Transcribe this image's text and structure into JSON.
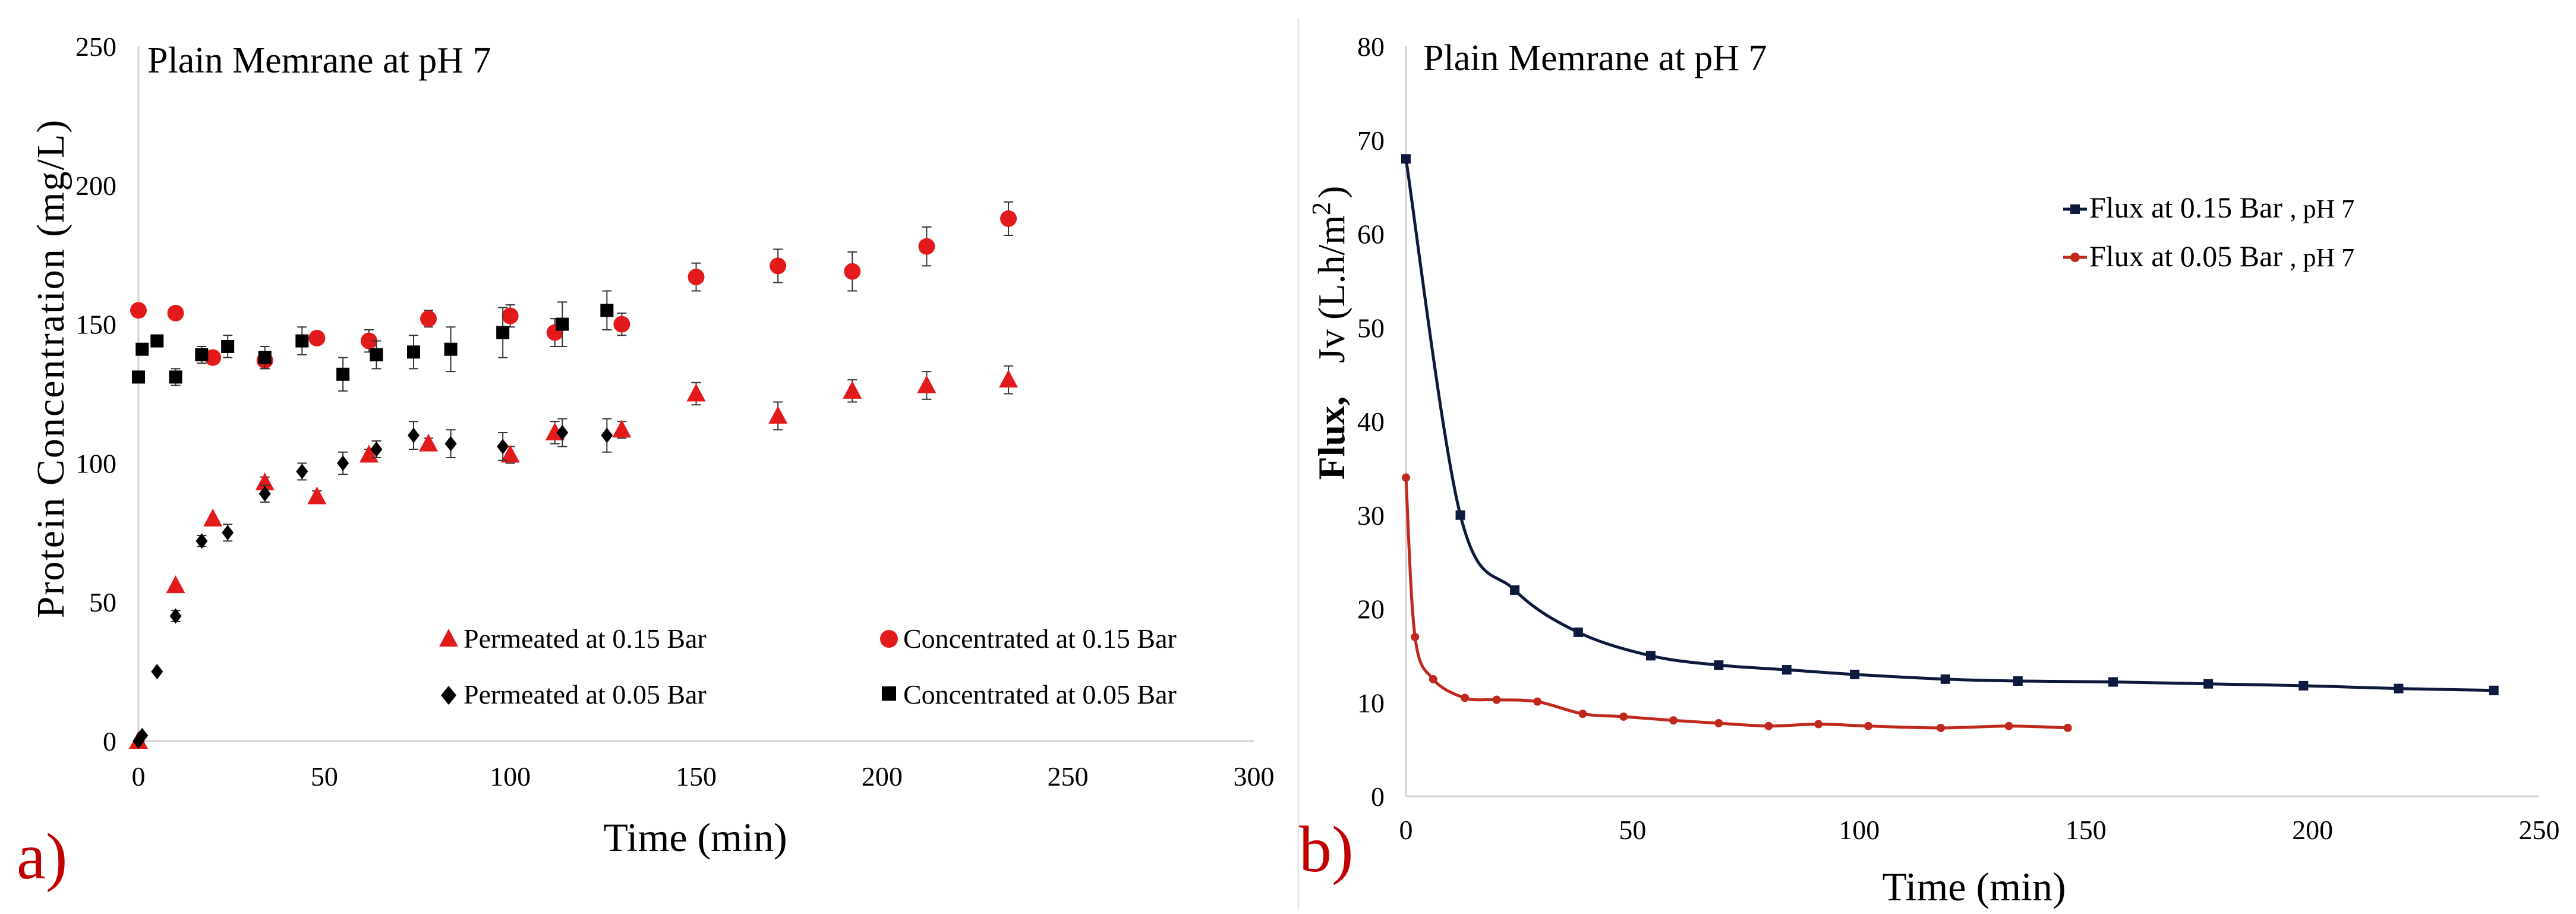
{
  "panels": {
    "left_label": "a)",
    "right_label": "b)",
    "label_color": "#c00000"
  },
  "chart_data": [
    {
      "type": "scatter",
      "title": "Plain Memrane  at pH 7",
      "xlabel": "Time (min)",
      "ylabel": "Protein Concentration  (mg/L)",
      "xlim": [
        0,
        300
      ],
      "ylim": [
        0,
        250
      ],
      "x_ticks": [
        0,
        50,
        100,
        150,
        200,
        250,
        300
      ],
      "y_ticks": [
        0,
        50,
        100,
        150,
        200,
        250
      ],
      "grid": false,
      "legend_position": "bottom",
      "series": [
        {
          "name": "Permeated at 0.15 Bar",
          "marker": "triangle",
          "color": "#e31a1c",
          "x": [
            0,
            10,
            20,
            34,
            48,
            62,
            78,
            100,
            112,
            130,
            150,
            172,
            192,
            212,
            234
          ],
          "y": [
            0,
            56,
            80,
            93,
            88,
            103,
            107,
            103,
            111,
            112,
            125,
            117,
            126,
            128,
            130
          ],
          "err": [
            0,
            0,
            0,
            2,
            2,
            2,
            2,
            3,
            4,
            3,
            4,
            5,
            4,
            5,
            5
          ]
        },
        {
          "name": "Concentrated at 0.15 Bar",
          "marker": "circle",
          "color": "#e31a1c",
          "x": [
            0,
            10,
            20,
            34,
            48,
            62,
            78,
            100,
            112,
            130,
            150,
            172,
            192,
            212,
            234
          ],
          "y": [
            155,
            154,
            138,
            137,
            145,
            144,
            152,
            153,
            147,
            150,
            167,
            171,
            169,
            178,
            188
          ],
          "err": [
            0,
            0,
            2,
            3,
            2,
            4,
            3,
            4,
            5,
            4,
            5,
            6,
            7,
            7,
            6
          ]
        },
        {
          "name": "Permeated at 0.05 Bar",
          "marker": "diamond",
          "color": "#000000",
          "x": [
            0,
            1,
            5,
            10,
            17,
            24,
            34,
            44,
            55,
            64,
            74,
            84,
            98,
            114,
            126
          ],
          "y": [
            0,
            2,
            25,
            45,
            72,
            75,
            89,
            97,
            100,
            105,
            110,
            107,
            106,
            111,
            110
          ],
          "err": [
            0,
            0,
            0,
            2,
            2,
            3,
            3,
            3,
            4,
            3,
            5,
            5,
            5,
            5,
            6
          ]
        },
        {
          "name": "Concentrated at 0.05 Bar",
          "marker": "square",
          "color": "#000000",
          "x": [
            0,
            1,
            5,
            10,
            17,
            24,
            34,
            44,
            55,
            64,
            74,
            84,
            98,
            114,
            126
          ],
          "y": [
            131,
            141,
            144,
            131,
            139,
            142,
            138,
            144,
            132,
            139,
            140,
            141,
            147,
            150,
            155
          ],
          "err": [
            0,
            0,
            0,
            3,
            3,
            4,
            4,
            5,
            6,
            5,
            6,
            8,
            9,
            8,
            7
          ]
        }
      ]
    },
    {
      "type": "line",
      "title": "Plain Memrane  at pH 7",
      "xlabel": "Time (min)",
      "ylabel_bold": "Flux,",
      "ylabel_rest": "Jv (L.h/m",
      "ylabel_sup": "2",
      "ylabel_close": ")",
      "xlim": [
        0,
        250
      ],
      "ylim": [
        0,
        80
      ],
      "x_ticks": [
        0,
        50,
        100,
        150,
        200,
        250
      ],
      "y_ticks": [
        0,
        10,
        20,
        30,
        40,
        50,
        60,
        70,
        80
      ],
      "grid": false,
      "legend_position": "top-right",
      "series": [
        {
          "name": "Flux at 0.15 Bar , pH 7",
          "legend_main": "Flux at 0.15 Bar",
          "legend_tail": ", pH 7",
          "color": "#0d1a3d",
          "marker": "square",
          "x": [
            0,
            12,
            24,
            38,
            54,
            69,
            84,
            99,
            119,
            135,
            156,
            177,
            198,
            219,
            240
          ],
          "y": [
            68,
            30,
            22,
            17.5,
            15,
            14,
            13.5,
            13,
            12.5,
            12.3,
            12.2,
            12,
            11.8,
            11.5,
            11.3
          ]
        },
        {
          "name": "Flux at 0.05 Bar , pH 7",
          "legend_main": "Flux at 0.05 Bar",
          "legend_tail": ", pH 7",
          "color": "#c0281e",
          "marker": "circle",
          "x": [
            0,
            2,
            6,
            13,
            20,
            29,
            39,
            48,
            59,
            69,
            80,
            91,
            102,
            118,
            133,
            146
          ],
          "y": [
            34,
            17,
            12.5,
            10.5,
            10.3,
            10.1,
            8.8,
            8.5,
            8.1,
            7.8,
            7.5,
            7.7,
            7.5,
            7.3,
            7.5,
            7.3
          ]
        }
      ]
    }
  ]
}
